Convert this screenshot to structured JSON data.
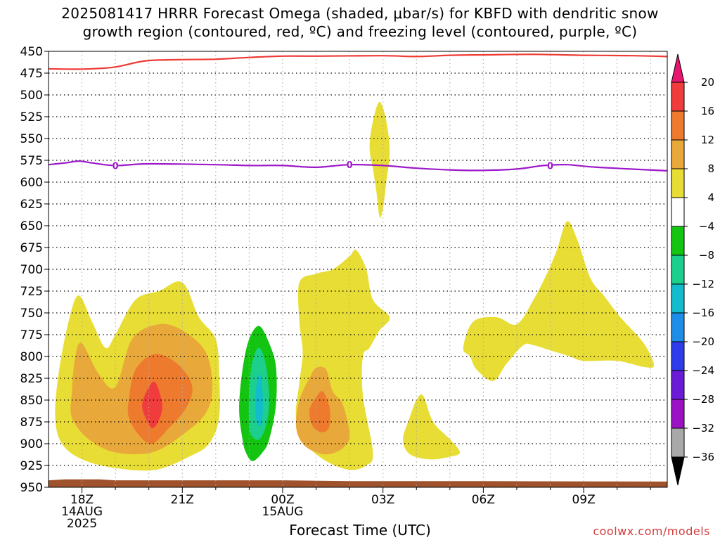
{
  "title_line1": "2025081417 HRRR Forecast Omega (shaded, μbar/s) for KBFD with dendritic snow",
  "title_line2": "growth region (contoured, red, ºC) and freezing level (contoured, purple, ºC)",
  "xlabel": "Forecast Time (UTC)",
  "credit": "coolwx.com/models",
  "chart_data": {
    "type": "time-height",
    "xlabel": "Forecast Time (UTC)",
    "x_start_hour": 17,
    "x_range_hours": [
      17,
      35.5
    ],
    "y_range_mb": [
      450,
      950
    ],
    "y_ticks": [
      450,
      475,
      500,
      525,
      550,
      575,
      600,
      625,
      650,
      675,
      700,
      725,
      750,
      775,
      800,
      825,
      850,
      875,
      900,
      925,
      950
    ],
    "x_ticks": [
      {
        "hour": 18,
        "lines": [
          "18Z",
          "14AUG",
          "2025"
        ]
      },
      {
        "hour": 21,
        "lines": [
          "21Z"
        ]
      },
      {
        "hour": 24,
        "lines": [
          "00Z",
          "15AUG"
        ]
      },
      {
        "hour": 27,
        "lines": [
          "03Z"
        ]
      },
      {
        "hour": 30,
        "lines": [
          "06Z"
        ]
      },
      {
        "hour": 33,
        "lines": [
          "09Z"
        ]
      }
    ],
    "grid": true,
    "colorbar": {
      "labels": [
        "20",
        "16",
        "12",
        "8",
        "4",
        "−4",
        "−8",
        "−12",
        "−16",
        "−20",
        "−24",
        "−28",
        "−32",
        "−36"
      ],
      "colors": [
        "#e8176e",
        "#f03c3c",
        "#ee7a2e",
        "#e9a93a",
        "#e8dd34",
        "#ffffff",
        "#13c410",
        "#1ccf8c",
        "#12bccc",
        "#1e8de8",
        "#2e3be8",
        "#6a1bd6",
        "#9a12c4",
        "#a9a9a9",
        "#000000"
      ]
    },
    "series": [
      {
        "name": "dendritic snow growth region",
        "color": "#ee3b36",
        "points": [
          [
            17,
            470
          ],
          [
            17.8,
            470.5
          ],
          [
            18.3,
            470
          ],
          [
            19,
            468
          ],
          [
            19.9,
            461
          ],
          [
            21,
            459.5
          ],
          [
            22,
            459
          ],
          [
            23,
            457
          ],
          [
            24,
            455.5
          ],
          [
            25,
            455.5
          ],
          [
            27,
            455
          ],
          [
            28,
            456
          ],
          [
            29,
            454.5
          ],
          [
            30,
            454
          ],
          [
            31.5,
            453.5
          ],
          [
            33,
            454.5
          ],
          [
            34.5,
            455
          ],
          [
            35.5,
            456
          ]
        ]
      },
      {
        "name": "freezing level",
        "color": "#9d19c9",
        "points": [
          [
            17,
            580
          ],
          [
            17.5,
            578
          ],
          [
            17.9,
            576
          ],
          [
            18.3,
            578
          ],
          [
            19,
            581
          ],
          [
            20,
            579
          ],
          [
            22,
            580
          ],
          [
            23,
            581
          ],
          [
            24,
            581
          ],
          [
            25,
            583
          ],
          [
            26,
            580
          ],
          [
            27,
            581
          ],
          [
            28,
            584
          ],
          [
            29,
            586
          ],
          [
            30,
            586.5
          ],
          [
            31,
            585
          ],
          [
            31.8,
            581
          ],
          [
            32.5,
            580
          ],
          [
            33.4,
            583
          ],
          [
            35.5,
            587
          ]
        ]
      }
    ],
    "contour_labels": [
      {
        "hour": 19.0,
        "p": 581,
        "text": "0"
      },
      {
        "hour": 26.0,
        "p": 580,
        "text": "0"
      },
      {
        "hour": 32.0,
        "p": 581,
        "text": "0"
      }
    ],
    "omega_regions": [
      {
        "value": 4,
        "color": "#e8dd34",
        "pts": [
          [
            17.2,
            870
          ],
          [
            17.3,
            820
          ],
          [
            17.6,
            760
          ],
          [
            17.9,
            730
          ],
          [
            18.3,
            760
          ],
          [
            18.7,
            790
          ],
          [
            19.0,
            775
          ],
          [
            19.6,
            735
          ],
          [
            20.3,
            725
          ],
          [
            21.0,
            715
          ],
          [
            21.5,
            755
          ],
          [
            22.0,
            780
          ],
          [
            22.1,
            820
          ],
          [
            22.1,
            870
          ],
          [
            21.8,
            900
          ],
          [
            21.2,
            915
          ],
          [
            20.2,
            930
          ],
          [
            19.0,
            928
          ],
          [
            18.0,
            918
          ],
          [
            17.4,
            900
          ]
        ]
      },
      {
        "value": 8,
        "color": "#e9a93a",
        "pts": [
          [
            17.7,
            840
          ],
          [
            17.8,
            800
          ],
          [
            18.0,
            785
          ],
          [
            18.5,
            820
          ],
          [
            19.0,
            835
          ],
          [
            19.5,
            780
          ],
          [
            20.3,
            763
          ],
          [
            21.0,
            770
          ],
          [
            21.7,
            795
          ],
          [
            21.9,
            835
          ],
          [
            21.7,
            865
          ],
          [
            21.0,
            890
          ],
          [
            20.1,
            910
          ],
          [
            19.0,
            910
          ],
          [
            18.2,
            895
          ],
          [
            17.7,
            870
          ]
        ]
      },
      {
        "value": 12,
        "color": "#ee7a2e",
        "pts": [
          [
            19.4,
            850
          ],
          [
            19.6,
            815
          ],
          [
            20.2,
            797
          ],
          [
            20.9,
            810
          ],
          [
            21.3,
            835
          ],
          [
            21.1,
            860
          ],
          [
            20.6,
            882
          ],
          [
            20.1,
            900
          ],
          [
            19.7,
            890
          ],
          [
            19.4,
            870
          ]
        ]
      },
      {
        "value": 16,
        "color": "#f03c3c",
        "pts": [
          [
            19.8,
            855
          ],
          [
            20.0,
            835
          ],
          [
            20.2,
            830
          ],
          [
            20.4,
            855
          ],
          [
            20.3,
            873
          ],
          [
            20.1,
            882
          ],
          [
            19.9,
            870
          ]
        ]
      },
      {
        "value": -4,
        "color": "#13c410",
        "pts": [
          [
            22.8,
            895
          ],
          [
            22.7,
            860
          ],
          [
            22.8,
            815
          ],
          [
            23.0,
            780
          ],
          [
            23.3,
            765
          ],
          [
            23.6,
            785
          ],
          [
            23.8,
            812
          ],
          [
            23.8,
            855
          ],
          [
            23.6,
            895
          ],
          [
            23.4,
            910
          ],
          [
            23.1,
            920
          ],
          [
            22.9,
            910
          ]
        ]
      },
      {
        "value": -8,
        "color": "#1ccf8c",
        "pts": [
          [
            23.0,
            880
          ],
          [
            23.0,
            840
          ],
          [
            23.1,
            805
          ],
          [
            23.3,
            790
          ],
          [
            23.5,
            810
          ],
          [
            23.6,
            850
          ],
          [
            23.5,
            880
          ],
          [
            23.3,
            895
          ],
          [
            23.1,
            892
          ]
        ]
      },
      {
        "value": -12,
        "color": "#12bccc",
        "pts": [
          [
            23.2,
            870
          ],
          [
            23.2,
            840
          ],
          [
            23.3,
            820
          ],
          [
            23.4,
            840
          ],
          [
            23.4,
            870
          ],
          [
            23.3,
            880
          ]
        ]
      },
      {
        "value": 4,
        "color": "#e8dd34",
        "pts": [
          [
            24.4,
            870
          ],
          [
            24.5,
            830
          ],
          [
            24.6,
            795
          ],
          [
            24.5,
            760
          ],
          [
            24.5,
            715
          ],
          [
            25.0,
            705
          ],
          [
            25.5,
            700
          ],
          [
            26.0,
            685
          ],
          [
            26.2,
            678
          ],
          [
            26.5,
            700
          ],
          [
            26.7,
            735
          ],
          [
            27.2,
            755
          ],
          [
            26.9,
            770
          ],
          [
            26.6,
            790
          ],
          [
            26.4,
            800
          ],
          [
            26.4,
            845
          ],
          [
            26.7,
            910
          ],
          [
            26.5,
            925
          ],
          [
            26.0,
            930
          ],
          [
            25.3,
            920
          ],
          [
            24.7,
            900
          ]
        ]
      },
      {
        "value": 8,
        "color": "#e9a93a",
        "pts": [
          [
            24.4,
            880
          ],
          [
            24.5,
            850
          ],
          [
            24.8,
            825
          ],
          [
            25.0,
            813
          ],
          [
            25.3,
            815
          ],
          [
            25.5,
            840
          ],
          [
            25.8,
            855
          ],
          [
            26.0,
            890
          ],
          [
            25.8,
            905
          ],
          [
            25.4,
            912
          ],
          [
            25.0,
            910
          ],
          [
            24.6,
            900
          ]
        ]
      },
      {
        "value": 12,
        "color": "#ee7a2e",
        "pts": [
          [
            24.8,
            862
          ],
          [
            25.0,
            847
          ],
          [
            25.2,
            840
          ],
          [
            25.4,
            858
          ],
          [
            25.4,
            880
          ],
          [
            25.2,
            887
          ],
          [
            24.9,
            880
          ]
        ]
      },
      {
        "value": 4,
        "color": "#e8dd34",
        "pts": [
          [
            26.6,
            560
          ],
          [
            26.7,
            530
          ],
          [
            26.9,
            508
          ],
          [
            27.1,
            530
          ],
          [
            27.2,
            565
          ],
          [
            27.1,
            600
          ],
          [
            27.0,
            630
          ],
          [
            26.9,
            640
          ],
          [
            26.8,
            610
          ],
          [
            26.7,
            585
          ]
        ]
      },
      {
        "value": 4,
        "color": "#e8dd34",
        "pts": [
          [
            27.6,
            895
          ],
          [
            27.8,
            870
          ],
          [
            28.0,
            850
          ],
          [
            28.2,
            845
          ],
          [
            28.5,
            875
          ],
          [
            29.0,
            895
          ],
          [
            29.3,
            910
          ],
          [
            29.0,
            915
          ],
          [
            28.4,
            918
          ],
          [
            27.8,
            912
          ]
        ]
      },
      {
        "value": 4,
        "color": "#e8dd34",
        "pts": [
          [
            29.4,
            790
          ],
          [
            29.7,
            760
          ],
          [
            30.4,
            755
          ],
          [
            31.0,
            763
          ],
          [
            31.5,
            735
          ],
          [
            31.9,
            705
          ],
          [
            32.2,
            678
          ],
          [
            32.5,
            645
          ],
          [
            32.8,
            665
          ],
          [
            33.2,
            710
          ],
          [
            33.6,
            730
          ],
          [
            34.1,
            755
          ],
          [
            34.8,
            785
          ],
          [
            35.1,
            810
          ],
          [
            34.8,
            812
          ],
          [
            34.0,
            805
          ],
          [
            33.0,
            805
          ],
          [
            32.6,
            800
          ],
          [
            32.0,
            793
          ],
          [
            31.5,
            787
          ],
          [
            31.2,
            787
          ],
          [
            30.7,
            808
          ],
          [
            30.3,
            828
          ],
          [
            29.8,
            815
          ],
          [
            29.6,
            800
          ]
        ]
      }
    ],
    "terrain": {
      "color": "#a0522d",
      "pts": [
        [
          17,
          942
        ],
        [
          17.5,
          941
        ],
        [
          18.5,
          941
        ],
        [
          19,
          942
        ],
        [
          24,
          942
        ],
        [
          26,
          943
        ],
        [
          30,
          943
        ],
        [
          35.5,
          943.5
        ]
      ]
    }
  }
}
